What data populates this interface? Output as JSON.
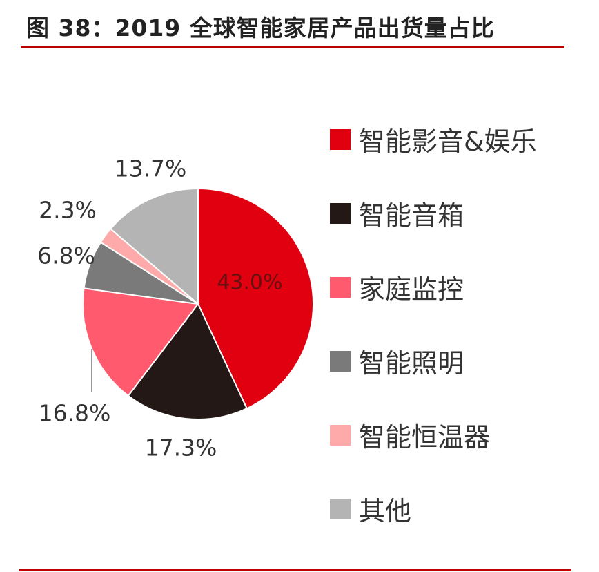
{
  "title": "图 38：2019 全球智能家居产品出货量占比",
  "chart_data": {
    "type": "pie",
    "title": "图 38：2019 全球智能家居产品出货量占比",
    "legend_position": "right",
    "slices": [
      {
        "name": "智能影音&娱乐",
        "value": 43.0,
        "label": "43.0%",
        "color": "#e1000f"
      },
      {
        "name": "智能音箱",
        "value": 17.3,
        "label": "17.3%",
        "color": "#231815"
      },
      {
        "name": "家庭监控",
        "value": 16.8,
        "label": "16.8%",
        "color": "#ff5a6e"
      },
      {
        "name": "智能照明",
        "value": 6.8,
        "label": "6.8%",
        "color": "#7a7a7a"
      },
      {
        "name": "智能恒温器",
        "value": 2.3,
        "label": "2.3%",
        "color": "#ffaaaa"
      },
      {
        "name": "其他",
        "value": 13.7,
        "label": "13.7%",
        "color": "#b4b4b4"
      }
    ]
  }
}
